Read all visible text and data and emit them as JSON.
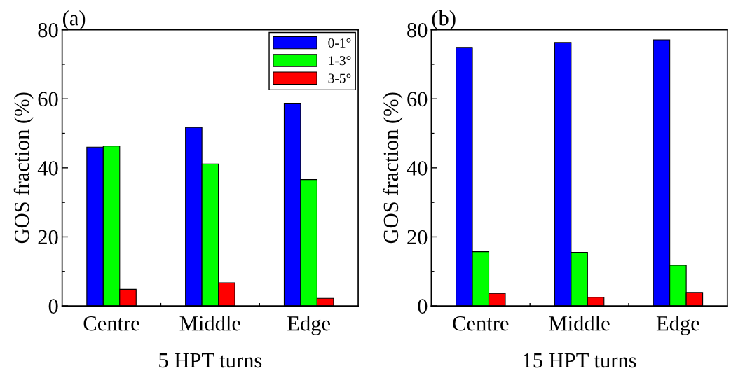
{
  "chart_data": [
    {
      "type": "bar",
      "title": "(a)",
      "xlabel": "5 HPT turns",
      "ylabel": "GOS fraction (%)",
      "categories": [
        "Centre",
        "Middle",
        "Edge"
      ],
      "series": [
        {
          "name": "0-1°",
          "color": "#0000ff",
          "values": [
            46.0,
            51.7,
            58.7
          ]
        },
        {
          "name": "1-3°",
          "color": "#00ff00",
          "values": [
            46.3,
            41.1,
            36.6
          ]
        },
        {
          "name": "3-5°",
          "color": "#ff0000",
          "values": [
            4.8,
            6.7,
            2.2
          ]
        }
      ],
      "ylim": [
        0,
        80
      ],
      "yticks": [
        0,
        20,
        40,
        60,
        80
      ],
      "legend": "top right"
    },
    {
      "type": "bar",
      "title": "(b)",
      "xlabel": "15 HPT turns",
      "ylabel": "GOS fraction (%)",
      "categories": [
        "Centre",
        "Middle",
        "Edge"
      ],
      "series": [
        {
          "color": "#0000ff",
          "values": [
            74.9,
            76.3,
            77.1
          ]
        },
        {
          "color": "#00ff00",
          "values": [
            15.7,
            15.5,
            11.8
          ]
        },
        {
          "color": "#ff0000",
          "values": [
            3.6,
            2.5,
            3.9
          ]
        }
      ],
      "ylim": [
        0,
        80
      ],
      "yticks": [
        0,
        20,
        40,
        60,
        80
      ]
    }
  ]
}
